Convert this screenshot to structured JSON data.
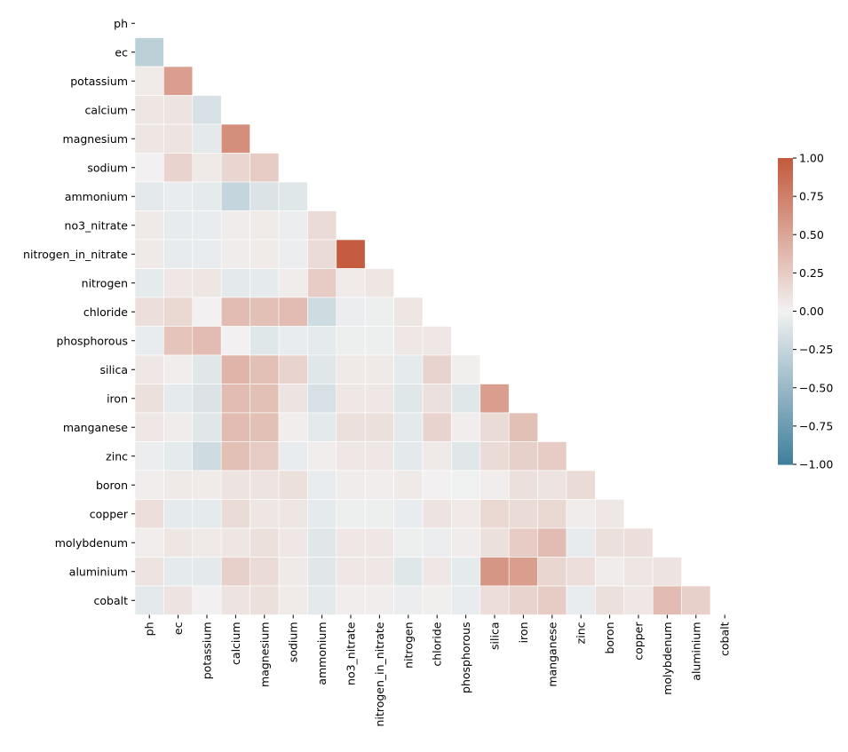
{
  "chart_data": {
    "type": "heatmap",
    "title": "",
    "mask": "upper-triangle-including-diagonal",
    "variables": [
      "ph",
      "ec",
      "potassium",
      "calcium",
      "magnesium",
      "sodium",
      "ammonium",
      "no3_nitrate",
      "nitrogen_in_nitrate",
      "nitrogen",
      "chloride",
      "phosphorous",
      "silica",
      "iron",
      "manganese",
      "zinc",
      "boron",
      "copper",
      "molybdenum",
      "aluminium",
      "cobalt"
    ],
    "lower_triangle": [
      [],
      [
        -0.3
      ],
      [
        0.05,
        0.55
      ],
      [
        0.08,
        0.1,
        -0.15
      ],
      [
        0.08,
        0.1,
        -0.08,
        0.65
      ],
      [
        0.01,
        0.2,
        0.06,
        0.18,
        0.25
      ],
      [
        -0.08,
        -0.05,
        -0.07,
        -0.25,
        -0.13,
        -0.1
      ],
      [
        0.06,
        -0.06,
        -0.05,
        0.04,
        0.05,
        -0.04,
        0.15
      ],
      [
        0.06,
        -0.06,
        -0.05,
        0.04,
        0.05,
        -0.04,
        0.15,
        0.98
      ],
      [
        -0.07,
        0.07,
        0.08,
        -0.08,
        -0.07,
        0.04,
        0.25,
        0.05,
        0.08
      ],
      [
        0.13,
        0.17,
        0.01,
        0.35,
        0.33,
        0.35,
        -0.2,
        -0.04,
        -0.03,
        0.08
      ],
      [
        -0.05,
        0.3,
        0.35,
        0.01,
        -0.1,
        -0.05,
        -0.07,
        -0.03,
        -0.03,
        0.07,
        0.07
      ],
      [
        0.07,
        0.03,
        -0.1,
        0.4,
        0.33,
        0.2,
        -0.1,
        0.06,
        0.06,
        -0.07,
        0.2,
        0.02
      ],
      [
        0.12,
        -0.07,
        -0.13,
        0.35,
        0.33,
        0.1,
        -0.15,
        0.07,
        0.07,
        -0.1,
        0.12,
        -0.1,
        0.55
      ],
      [
        0.07,
        0.04,
        -0.1,
        0.35,
        0.33,
        0.03,
        -0.08,
        0.12,
        0.12,
        -0.08,
        0.2,
        0.03,
        0.15,
        0.33
      ],
      [
        -0.04,
        -0.07,
        -0.2,
        0.33,
        0.25,
        -0.05,
        0.03,
        0.07,
        0.07,
        -0.08,
        0.06,
        -0.1,
        0.15,
        0.22,
        0.25
      ],
      [
        0.03,
        0.06,
        0.05,
        0.1,
        0.1,
        0.12,
        -0.05,
        0.04,
        0.03,
        0.06,
        0.01,
        -0.01,
        0.03,
        0.12,
        0.1,
        0.15
      ],
      [
        0.13,
        -0.07,
        -0.07,
        0.15,
        0.08,
        0.08,
        -0.07,
        -0.03,
        -0.03,
        -0.05,
        0.1,
        0.06,
        0.17,
        0.15,
        0.17,
        0.04,
        0.07
      ],
      [
        0.03,
        0.08,
        0.06,
        0.08,
        0.12,
        0.07,
        -0.1,
        0.07,
        0.07,
        -0.03,
        -0.04,
        0.04,
        0.12,
        0.25,
        0.35,
        -0.06,
        0.12,
        0.13
      ],
      [
        0.1,
        -0.07,
        -0.08,
        0.22,
        0.15,
        0.06,
        -0.1,
        0.07,
        0.07,
        -0.1,
        0.07,
        -0.07,
        0.6,
        0.55,
        0.18,
        0.13,
        0.04,
        0.08,
        0.1
      ],
      [
        -0.08,
        0.1,
        0.01,
        0.1,
        0.12,
        0.05,
        -0.08,
        0.03,
        0.03,
        -0.04,
        0.02,
        -0.05,
        0.14,
        0.2,
        0.25,
        -0.05,
        0.12,
        0.07,
        0.35,
        0.22
      ]
    ],
    "vmin": -1,
    "vmax": 1,
    "colorbar_ticks": [
      "1.00",
      "0.75",
      "0.50",
      "0.25",
      "0.00",
      "−0.25",
      "−0.50",
      "−0.75",
      "−1.00"
    ],
    "colormap": {
      "low": "#3f7f9c",
      "mid": "#f2f2f2",
      "high": "#c4593c"
    },
    "xlabel": "",
    "ylabel": ""
  }
}
